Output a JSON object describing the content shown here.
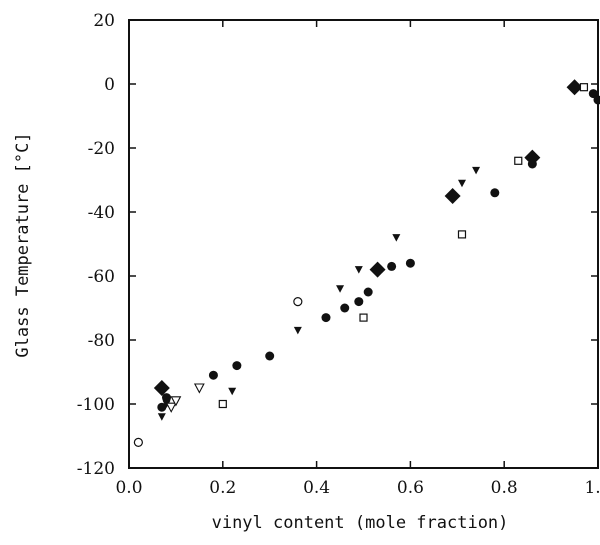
{
  "chart_data": {
    "type": "scatter",
    "title": "",
    "xlabel": "vinyl content (mole fraction)",
    "ylabel": "Glass Temperature [°C]",
    "xlim": [
      0.0,
      1.0
    ],
    "ylim": [
      -120,
      20
    ],
    "xticks": [
      0.0,
      0.2,
      0.4,
      0.6,
      0.8,
      1.0
    ],
    "xtick_labels": [
      "0.0",
      "0.2",
      "0.4",
      "0.6",
      "0.8",
      "1.0"
    ],
    "yticks": [
      20,
      0,
      -20,
      -40,
      -60,
      -80,
      -100,
      -120
    ],
    "ytick_labels": [
      "20",
      "0",
      "-20",
      "-40",
      "-60",
      "-80",
      "-100",
      "-120"
    ],
    "grid": false,
    "legend": false,
    "series": [
      {
        "marker": "diamond-filled",
        "points": [
          [
            0.07,
            -95
          ],
          [
            0.53,
            -58
          ],
          [
            0.69,
            -35
          ],
          [
            0.86,
            -23
          ],
          [
            0.95,
            -1
          ]
        ]
      },
      {
        "marker": "circle-filled",
        "points": [
          [
            0.07,
            -101
          ],
          [
            0.08,
            -98
          ],
          [
            0.18,
            -91
          ],
          [
            0.23,
            -88
          ],
          [
            0.3,
            -85
          ],
          [
            0.42,
            -73
          ],
          [
            0.46,
            -70
          ],
          [
            0.49,
            -68
          ],
          [
            0.51,
            -65
          ],
          [
            0.56,
            -57
          ],
          [
            0.6,
            -56
          ],
          [
            0.78,
            -34
          ],
          [
            0.86,
            -25
          ],
          [
            0.99,
            -3
          ],
          [
            1.0,
            -5
          ]
        ]
      },
      {
        "marker": "triangle-down-filled",
        "points": [
          [
            0.07,
            -104
          ],
          [
            0.08,
            -100
          ],
          [
            0.22,
            -96
          ],
          [
            0.36,
            -77
          ],
          [
            0.45,
            -64
          ],
          [
            0.49,
            -58
          ],
          [
            0.57,
            -48
          ],
          [
            0.71,
            -31
          ],
          [
            0.74,
            -27
          ]
        ]
      },
      {
        "marker": "triangle-down-open",
        "points": [
          [
            0.09,
            -101
          ],
          [
            0.1,
            -99
          ],
          [
            0.15,
            -95
          ]
        ]
      },
      {
        "marker": "square-open",
        "points": [
          [
            0.2,
            -100
          ],
          [
            0.5,
            -73
          ],
          [
            0.71,
            -47
          ],
          [
            0.83,
            -24
          ],
          [
            0.97,
            -1
          ]
        ]
      },
      {
        "marker": "circle-open",
        "points": [
          [
            0.02,
            -112
          ],
          [
            0.36,
            -68
          ]
        ]
      }
    ]
  }
}
